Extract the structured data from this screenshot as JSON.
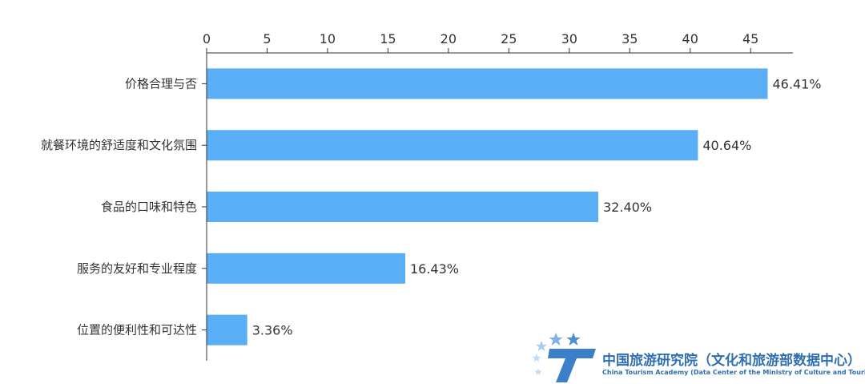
{
  "chart_data": {
    "type": "bar",
    "orientation": "horizontal",
    "categories": [
      "价格合理与否",
      "就餐环境的舒适度和文化氛围",
      "食品的口味和特色",
      "服务的友好和专业程度",
      "位置的便利性和可达性"
    ],
    "values": [
      46.41,
      40.64,
      32.4,
      16.43,
      3.36
    ],
    "data_labels": [
      "46.41%",
      "40.64%",
      "32.40%",
      "16.43%",
      "3.36%"
    ],
    "xlim": [
      0,
      48.5
    ],
    "xticks": [
      0,
      5,
      10,
      15,
      20,
      25,
      30,
      35,
      40,
      45
    ],
    "xaxis_position": "top",
    "bar_color": "#5aaef5",
    "grid": false,
    "legend": "none"
  },
  "watermark": {
    "name_zh": "中国旅游研究院（文化和旅游部数据中心）",
    "name_en": "China Tourism Academy (Data Center of the Ministry of Culture and Tourism)",
    "logo_icon": "cta-logo-icon",
    "color": "#2f6fb0"
  }
}
